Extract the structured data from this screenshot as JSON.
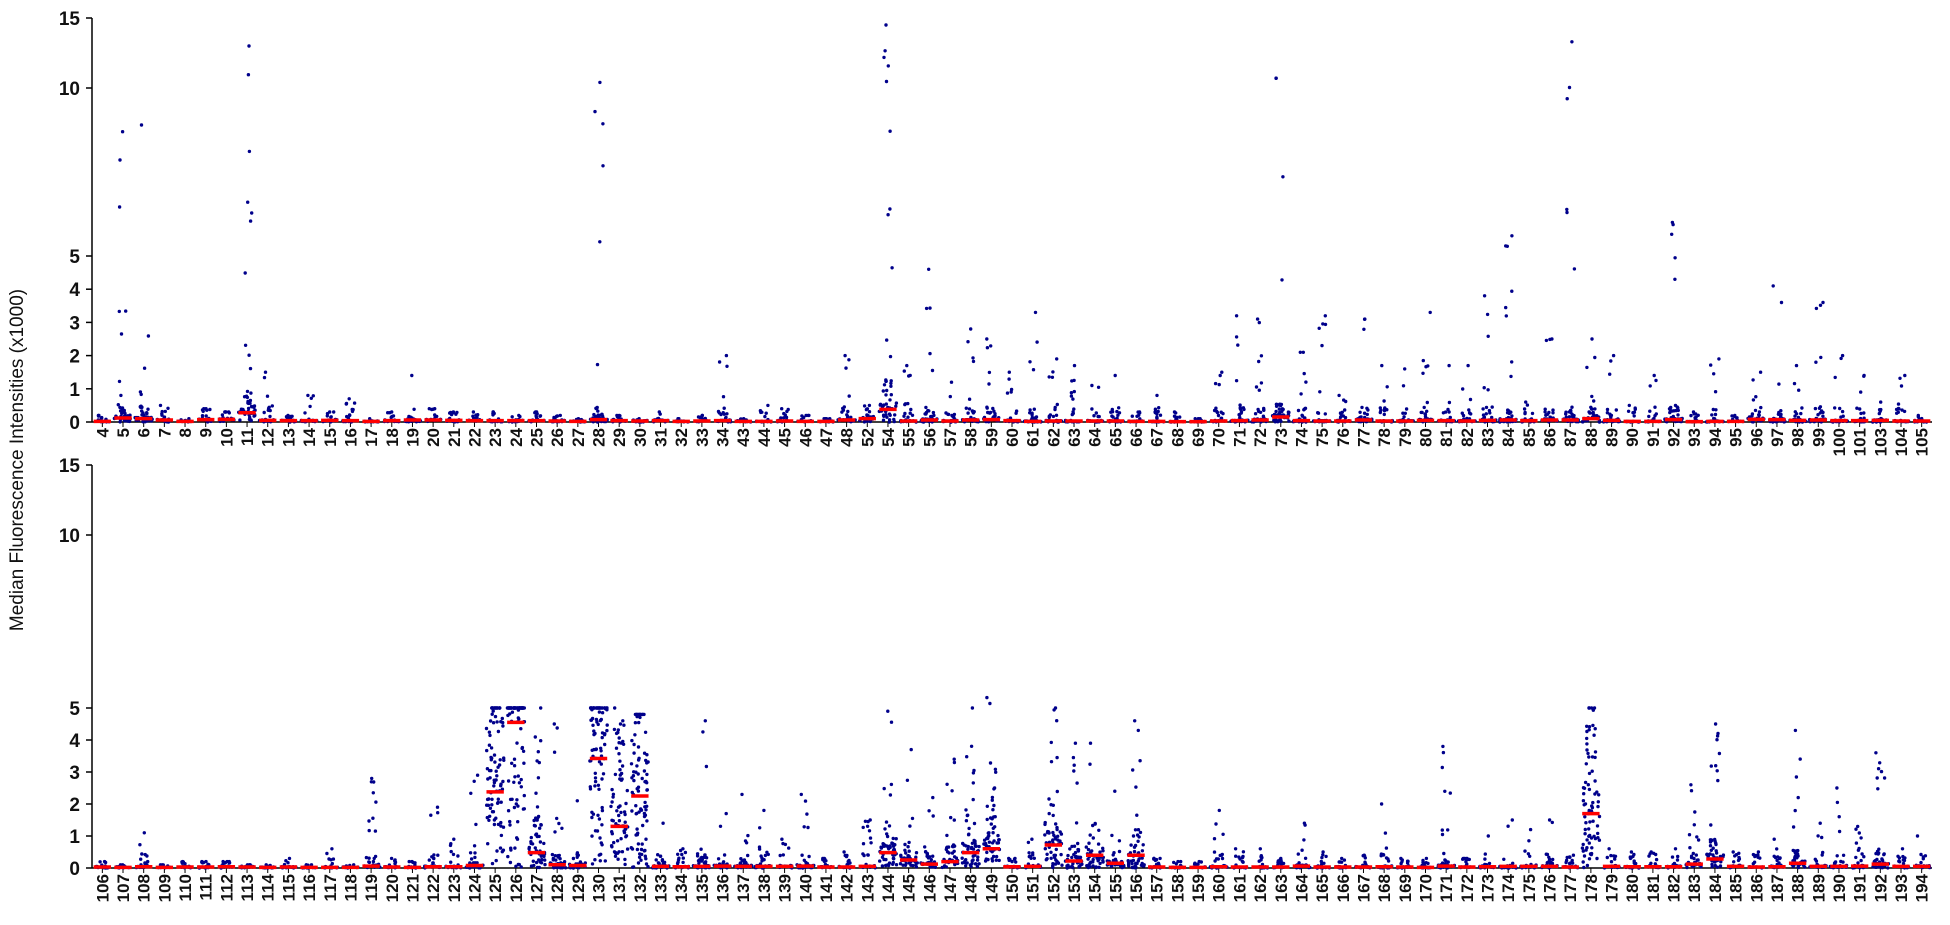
{
  "figure": {
    "ylabel": "Median Fluorescence Intensities (x1000)"
  },
  "colors": {
    "points": "#00008B",
    "median": "#FF0000",
    "axis": "#000000"
  },
  "chart_data": [
    {
      "type": "scatter",
      "panel": "top",
      "y_scale": "broken (0-5 linear, 5-15 compressed)",
      "ylim": [
        0,
        15
      ],
      "y_ticks": [
        "0",
        "1",
        "2",
        "3",
        "4",
        "5",
        "10",
        "15"
      ],
      "categories": [
        "4",
        "5",
        "6",
        "7",
        "8",
        "9",
        "10",
        "11",
        "12",
        "13",
        "14",
        "15",
        "16",
        "17",
        "18",
        "19",
        "20",
        "21",
        "22",
        "23",
        "24",
        "25",
        "26",
        "27",
        "28",
        "29",
        "30",
        "31",
        "32",
        "33",
        "34",
        "43",
        "44",
        "45",
        "46",
        "47",
        "48",
        "52",
        "54",
        "55",
        "56",
        "57",
        "58",
        "59",
        "60",
        "61",
        "62",
        "63",
        "64",
        "65",
        "66",
        "67",
        "68",
        "69",
        "70",
        "71",
        "72",
        "73",
        "74",
        "75",
        "76",
        "77",
        "78",
        "79",
        "80",
        "81",
        "82",
        "83",
        "84",
        "85",
        "86",
        "87",
        "88",
        "89",
        "90",
        "91",
        "92",
        "93",
        "94",
        "95",
        "96",
        "97",
        "98",
        "99",
        "100",
        "101",
        "103",
        "104",
        "105"
      ],
      "medians": [
        0.02,
        0.12,
        0.1,
        0.06,
        0.02,
        0.07,
        0.08,
        0.28,
        0.05,
        0.04,
        0.04,
        0.05,
        0.04,
        0.02,
        0.04,
        0.06,
        0.06,
        0.05,
        0.04,
        0.04,
        0.04,
        0.04,
        0.03,
        0.02,
        0.07,
        0.04,
        0.03,
        0.04,
        0.02,
        0.03,
        0.04,
        0.02,
        0.02,
        0.03,
        0.02,
        0.02,
        0.06,
        0.1,
        0.38,
        0.03,
        0.06,
        0.03,
        0.06,
        0.07,
        0.04,
        0.02,
        0.03,
        0.03,
        0.03,
        0.03,
        0.02,
        0.02,
        0.01,
        0.01,
        0.03,
        0.04,
        0.06,
        0.15,
        0.04,
        0.03,
        0.03,
        0.06,
        0.03,
        0.03,
        0.05,
        0.04,
        0.03,
        0.05,
        0.06,
        0.04,
        0.06,
        0.06,
        0.1,
        0.05,
        0.02,
        0.02,
        0.07,
        0.01,
        0.02,
        0.02,
        0.08,
        0.07,
        0.05,
        0.06,
        0.04,
        0.04,
        0.05,
        0.03,
        0.03
      ],
      "maxima": [
        0.2,
        8.7,
        8.9,
        0.5,
        0.1,
        0.4,
        0.3,
        13.0,
        1.5,
        0.2,
        0.8,
        0.3,
        0.7,
        0.1,
        0.3,
        1.4,
        0.4,
        0.3,
        0.3,
        0.3,
        0.2,
        0.3,
        0.2,
        0.1,
        10.4,
        0.2,
        0.1,
        0.3,
        0.1,
        0.2,
        2.0,
        0.1,
        0.5,
        0.4,
        0.2,
        0.1,
        2.0,
        0.5,
        14.5,
        1.7,
        4.6,
        1.2,
        2.8,
        2.5,
        1.5,
        3.3,
        1.9,
        1.7,
        1.1,
        1.4,
        0.3,
        0.8,
        0.3,
        0.1,
        1.5,
        3.2,
        3.1,
        10.7,
        2.1,
        3.2,
        0.8,
        3.1,
        1.7,
        1.6,
        3.3,
        1.7,
        1.7,
        3.8,
        5.6,
        0.6,
        2.5,
        13.3,
        2.5,
        2.0,
        0.5,
        1.4,
        6.0,
        0.3,
        1.9,
        0.2,
        1.5,
        4.1,
        1.7,
        3.6,
        2.0,
        1.4,
        0.6,
        1.4,
        0.2
      ]
    },
    {
      "type": "scatter",
      "panel": "bottom",
      "y_scale": "broken (0-5 linear, 5-15 compressed)",
      "ylim": [
        0,
        15
      ],
      "y_ticks": [
        "0",
        "1",
        "2",
        "3",
        "4",
        "5",
        "10",
        "15"
      ],
      "categories": [
        "106",
        "107",
        "108",
        "109",
        "110",
        "111",
        "112",
        "113",
        "114",
        "115",
        "116",
        "117",
        "118",
        "119",
        "120",
        "121",
        "122",
        "123",
        "124",
        "125",
        "126",
        "127",
        "128",
        "129",
        "130",
        "131",
        "132",
        "133",
        "134",
        "135",
        "136",
        "137",
        "138",
        "139",
        "140",
        "141",
        "142",
        "143",
        "144",
        "145",
        "146",
        "147",
        "148",
        "149",
        "150",
        "151",
        "152",
        "153",
        "154",
        "155",
        "156",
        "157",
        "158",
        "159",
        "160",
        "161",
        "162",
        "163",
        "164",
        "165",
        "166",
        "167",
        "168",
        "169",
        "170",
        "171",
        "172",
        "173",
        "174",
        "175",
        "176",
        "177",
        "178",
        "179",
        "180",
        "181",
        "182",
        "183",
        "184",
        "185",
        "186",
        "187",
        "188",
        "189",
        "190",
        "191",
        "192",
        "193",
        "194"
      ],
      "medians": [
        0.03,
        0.02,
        0.04,
        0.02,
        0.03,
        0.03,
        0.04,
        0.03,
        0.02,
        0.03,
        0.02,
        0.02,
        0.02,
        0.06,
        0.03,
        0.02,
        0.04,
        0.04,
        0.08,
        2.38,
        4.55,
        0.48,
        0.1,
        0.08,
        3.42,
        1.3,
        2.25,
        0.05,
        0.04,
        0.05,
        0.06,
        0.05,
        0.05,
        0.05,
        0.06,
        0.03,
        0.03,
        0.05,
        0.48,
        0.25,
        0.12,
        0.2,
        0.48,
        0.6,
        0.04,
        0.05,
        0.72,
        0.22,
        0.4,
        0.15,
        0.4,
        0.03,
        0.02,
        0.02,
        0.04,
        0.03,
        0.03,
        0.03,
        0.06,
        0.03,
        0.03,
        0.03,
        0.04,
        0.03,
        0.02,
        0.06,
        0.03,
        0.04,
        0.05,
        0.05,
        0.05,
        0.03,
        1.7,
        0.05,
        0.04,
        0.04,
        0.04,
        0.12,
        0.28,
        0.05,
        0.03,
        0.04,
        0.15,
        0.05,
        0.05,
        0.06,
        0.12,
        0.05,
        0.05
      ],
      "maxima": [
        0.2,
        0.1,
        1.1,
        0.1,
        0.2,
        0.2,
        0.2,
        0.1,
        0.1,
        0.3,
        0.1,
        0.6,
        0.1,
        2.8,
        0.3,
        0.2,
        1.9,
        0.9,
        2.9,
        5.0,
        5.0,
        5.0,
        4.5,
        2.1,
        5.0,
        5.0,
        4.8,
        1.4,
        0.6,
        4.6,
        1.7,
        2.3,
        1.8,
        0.9,
        2.3,
        0.3,
        0.5,
        1.5,
        4.9,
        3.7,
        2.2,
        3.4,
        5.0,
        5.3,
        0.3,
        0.9,
        5.0,
        3.9,
        3.9,
        2.4,
        4.6,
        0.3,
        0.2,
        0.2,
        1.8,
        0.6,
        0.6,
        0.3,
        1.4,
        0.5,
        0.3,
        0.4,
        2.0,
        0.3,
        0.3,
        3.8,
        0.3,
        1.0,
        1.5,
        1.2,
        1.5,
        0.4,
        5.0,
        0.6,
        0.5,
        0.5,
        0.6,
        2.6,
        4.5,
        0.5,
        0.5,
        0.9,
        4.3,
        1.4,
        2.5,
        1.3,
        3.6,
        0.6,
        1.0
      ]
    }
  ]
}
